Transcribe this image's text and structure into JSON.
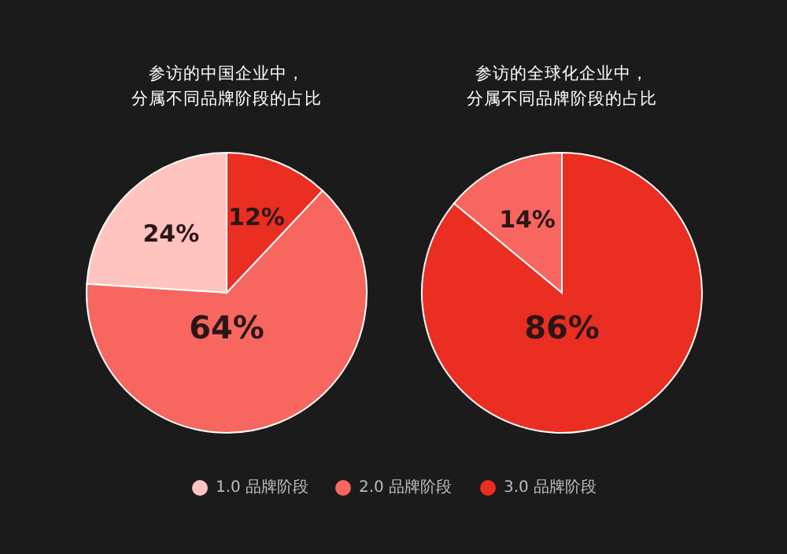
{
  "chart_data": [
    {
      "type": "pie",
      "title": "参访的中国企业中，分属不同品牌阶段的占比",
      "categories": [
        "1.0 品牌阶段",
        "2.0 品牌阶段",
        "3.0 品牌阶段"
      ],
      "values": [
        24,
        64,
        12
      ],
      "colors": [
        "#ffc4c0",
        "#f7675f",
        "#ea2e22"
      ],
      "value_labels": [
        "24%",
        "64%",
        "12%"
      ],
      "legend": "bottom"
    },
    {
      "type": "pie",
      "title": "参访的全球化企业中，分属不同品牌阶段的占比",
      "categories": [
        null,
        null
      ],
      "values": [
        14,
        86
      ],
      "colors": [
        "#f7675f",
        "#ea2e22"
      ],
      "value_labels": [
        "14%",
        "86%"
      ]
    }
  ]
}
